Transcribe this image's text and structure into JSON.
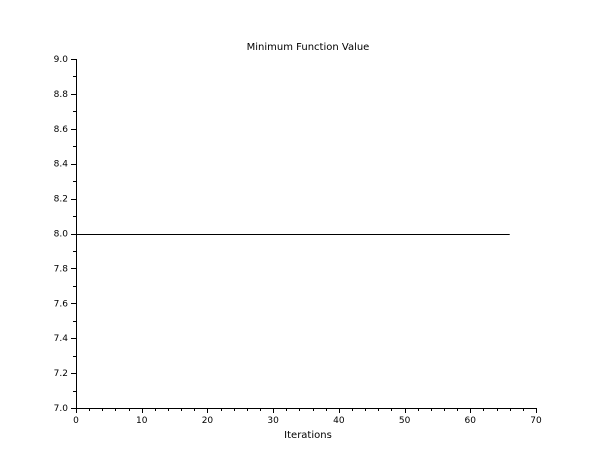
{
  "chart_data": {
    "type": "line",
    "title": "Minimum Function Value",
    "xlabel": "Iterations",
    "ylabel": "",
    "xlim": [
      0,
      70
    ],
    "ylim": [
      7.0,
      9.0
    ],
    "xticks": [
      0,
      10,
      20,
      30,
      40,
      50,
      60,
      70
    ],
    "xtick_labels": [
      "0",
      "10",
      "20",
      "30",
      "40",
      "50",
      "60",
      "70"
    ],
    "yticks": [
      7.0,
      7.2,
      7.4,
      7.6,
      7.8,
      8.0,
      8.2,
      8.4,
      8.6,
      8.8,
      9.0
    ],
    "ytick_labels": [
      "7.0",
      "7.2",
      "7.4",
      "7.6",
      "7.8",
      "8.0",
      "8.2",
      "8.4",
      "8.6",
      "8.8",
      "9.0"
    ],
    "grid": false,
    "series": [
      {
        "x": [
          0,
          66
        ],
        "y": [
          8.0,
          8.0
        ],
        "color": "#000000"
      }
    ]
  }
}
